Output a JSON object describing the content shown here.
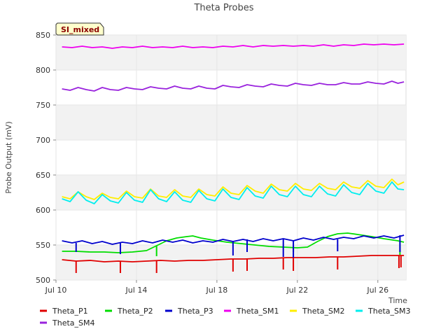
{
  "chart_data": {
    "type": "line",
    "title": "Theta Probes",
    "xlabel": "Time",
    "ylabel": "Probe Output (mV)",
    "badge": "SI_mixed",
    "ylim": [
      500,
      850
    ],
    "yticks": [
      500,
      550,
      600,
      650,
      700,
      750,
      800,
      850
    ],
    "xlim": [
      10,
      27.4
    ],
    "xticks": [
      {
        "value": 10,
        "label": "Jul 10"
      },
      {
        "value": 14,
        "label": "Jul 14"
      },
      {
        "value": 18,
        "label": "Jul 18"
      },
      {
        "value": 22,
        "label": "Jul 22"
      },
      {
        "value": 26,
        "label": "Jul 26"
      }
    ],
    "series": [
      {
        "name": "Theta_P1",
        "color": "#e00000",
        "values": [
          [
            10.3,
            529
          ],
          [
            11,
            527
          ],
          [
            11.7,
            528
          ],
          [
            12.4,
            526
          ],
          [
            13.1,
            527
          ],
          [
            13.8,
            526
          ],
          [
            14.5,
            527
          ],
          [
            15.2,
            528
          ],
          [
            15.9,
            527
          ],
          [
            16.6,
            528
          ],
          [
            17.3,
            528
          ],
          [
            18,
            529
          ],
          [
            18.7,
            530
          ],
          [
            19.4,
            530
          ],
          [
            20.1,
            531
          ],
          [
            20.8,
            531
          ],
          [
            21.5,
            532
          ],
          [
            22.2,
            532
          ],
          [
            22.9,
            532
          ],
          [
            23.6,
            533
          ],
          [
            24.3,
            533
          ],
          [
            25,
            534
          ],
          [
            25.7,
            535
          ],
          [
            26.4,
            535
          ],
          [
            27.1,
            535
          ],
          [
            27.3,
            535
          ]
        ],
        "spikes": [
          [
            11,
            510
          ],
          [
            13.2,
            510
          ],
          [
            15,
            510
          ],
          [
            18.8,
            512
          ],
          [
            19.5,
            513
          ],
          [
            21.3,
            515
          ],
          [
            21.8,
            513
          ],
          [
            24,
            515
          ],
          [
            27.05,
            517
          ],
          [
            27.15,
            518
          ]
        ]
      },
      {
        "name": "Theta_P2",
        "color": "#00dd00",
        "values": [
          [
            10.3,
            541
          ],
          [
            11,
            541
          ],
          [
            11.7,
            540
          ],
          [
            12.4,
            540
          ],
          [
            13.1,
            539
          ],
          [
            13.8,
            540
          ],
          [
            14.5,
            542
          ],
          [
            15,
            549
          ],
          [
            15.5,
            556
          ],
          [
            16,
            560
          ],
          [
            16.5,
            562
          ],
          [
            16.8,
            563
          ],
          [
            17.2,
            560
          ],
          [
            17.8,
            557
          ],
          [
            18.5,
            554
          ],
          [
            19.2,
            552
          ],
          [
            19.9,
            550
          ],
          [
            20.6,
            548
          ],
          [
            21.3,
            547
          ],
          [
            22,
            546
          ],
          [
            22.5,
            547
          ],
          [
            23,
            555
          ],
          [
            23.5,
            562
          ],
          [
            24,
            566
          ],
          [
            24.5,
            567
          ],
          [
            25,
            565
          ],
          [
            25.7,
            562
          ],
          [
            26.3,
            559
          ],
          [
            27,
            556
          ],
          [
            27.3,
            554
          ]
        ],
        "spikes": [
          [
            15,
            534
          ],
          [
            21.8,
            540
          ],
          [
            27.1,
            536
          ]
        ]
      },
      {
        "name": "Theta_P3",
        "color": "#0000cc",
        "values": [
          [
            10.3,
            556
          ],
          [
            10.8,
            553
          ],
          [
            11.3,
            556
          ],
          [
            11.8,
            552
          ],
          [
            12.3,
            555
          ],
          [
            12.8,
            551
          ],
          [
            13.3,
            554
          ],
          [
            13.8,
            552
          ],
          [
            14.3,
            556
          ],
          [
            14.8,
            553
          ],
          [
            15.3,
            557
          ],
          [
            15.8,
            554
          ],
          [
            16.3,
            557
          ],
          [
            16.8,
            553
          ],
          [
            17.3,
            556
          ],
          [
            17.8,
            554
          ],
          [
            18.3,
            558
          ],
          [
            18.8,
            555
          ],
          [
            19.3,
            558
          ],
          [
            19.8,
            555
          ],
          [
            20.3,
            559
          ],
          [
            20.8,
            556
          ],
          [
            21.3,
            559
          ],
          [
            21.8,
            556
          ],
          [
            22.3,
            560
          ],
          [
            22.8,
            557
          ],
          [
            23.3,
            561
          ],
          [
            23.8,
            558
          ],
          [
            24.3,
            561
          ],
          [
            24.8,
            559
          ],
          [
            25.3,
            563
          ],
          [
            25.8,
            560
          ],
          [
            26.3,
            563
          ],
          [
            26.8,
            560
          ],
          [
            27.3,
            564
          ]
        ],
        "spikes": [
          [
            11,
            540
          ],
          [
            13.2,
            537
          ],
          [
            18.8,
            535
          ],
          [
            19.5,
            540
          ],
          [
            21.3,
            533
          ],
          [
            21.8,
            532
          ],
          [
            24,
            541
          ],
          [
            27.1,
            540
          ]
        ]
      },
      {
        "name": "Theta_SM1",
        "color": "#ee00ee",
        "values": [
          [
            10.3,
            833
          ],
          [
            10.8,
            832
          ],
          [
            11.3,
            834
          ],
          [
            11.8,
            832
          ],
          [
            12.3,
            833
          ],
          [
            12.8,
            831
          ],
          [
            13.3,
            833
          ],
          [
            13.8,
            832
          ],
          [
            14.3,
            834
          ],
          [
            14.8,
            832
          ],
          [
            15.3,
            833
          ],
          [
            15.8,
            832
          ],
          [
            16.3,
            834
          ],
          [
            16.8,
            832
          ],
          [
            17.3,
            833
          ],
          [
            17.8,
            832
          ],
          [
            18.3,
            834
          ],
          [
            18.8,
            833
          ],
          [
            19.3,
            835
          ],
          [
            19.8,
            833
          ],
          [
            20.3,
            835
          ],
          [
            20.8,
            834
          ],
          [
            21.3,
            835
          ],
          [
            21.8,
            834
          ],
          [
            22.3,
            835
          ],
          [
            22.8,
            834
          ],
          [
            23.3,
            836
          ],
          [
            23.8,
            834
          ],
          [
            24.3,
            836
          ],
          [
            24.8,
            835
          ],
          [
            25.3,
            837
          ],
          [
            25.8,
            836
          ],
          [
            26.3,
            837
          ],
          [
            26.8,
            836
          ],
          [
            27.3,
            837
          ]
        ]
      },
      {
        "name": "Theta_SM2",
        "color": "#ffee00",
        "values": [
          [
            10.3,
            619
          ],
          [
            10.7,
            616
          ],
          [
            11.1,
            626
          ],
          [
            11.5,
            619
          ],
          [
            11.9,
            615
          ],
          [
            12.3,
            624
          ],
          [
            12.7,
            618
          ],
          [
            13.1,
            616
          ],
          [
            13.5,
            627
          ],
          [
            13.9,
            619
          ],
          [
            14.3,
            617
          ],
          [
            14.7,
            630
          ],
          [
            15.1,
            620
          ],
          [
            15.5,
            618
          ],
          [
            15.9,
            629
          ],
          [
            16.3,
            620
          ],
          [
            16.7,
            618
          ],
          [
            17.1,
            630
          ],
          [
            17.5,
            622
          ],
          [
            17.9,
            620
          ],
          [
            18.3,
            633
          ],
          [
            18.7,
            624
          ],
          [
            19.1,
            622
          ],
          [
            19.5,
            635
          ],
          [
            19.9,
            627
          ],
          [
            20.3,
            624
          ],
          [
            20.7,
            637
          ],
          [
            21.1,
            629
          ],
          [
            21.5,
            627
          ],
          [
            21.9,
            638
          ],
          [
            22.3,
            630
          ],
          [
            22.7,
            628
          ],
          [
            23.1,
            638
          ],
          [
            23.5,
            631
          ],
          [
            23.9,
            629
          ],
          [
            24.3,
            640
          ],
          [
            24.7,
            633
          ],
          [
            25.1,
            631
          ],
          [
            25.5,
            642
          ],
          [
            25.9,
            634
          ],
          [
            26.3,
            632
          ],
          [
            26.7,
            644
          ],
          [
            27,
            636
          ],
          [
            27.3,
            640
          ]
        ]
      },
      {
        "name": "Theta_SM3",
        "color": "#00eeee",
        "values": [
          [
            10.3,
            616
          ],
          [
            10.7,
            612
          ],
          [
            11.1,
            626
          ],
          [
            11.5,
            614
          ],
          [
            11.9,
            609
          ],
          [
            12.3,
            622
          ],
          [
            12.7,
            613
          ],
          [
            13.1,
            610
          ],
          [
            13.5,
            625
          ],
          [
            13.9,
            614
          ],
          [
            14.3,
            611
          ],
          [
            14.7,
            629
          ],
          [
            15.1,
            616
          ],
          [
            15.5,
            612
          ],
          [
            15.9,
            626
          ],
          [
            16.3,
            614
          ],
          [
            16.7,
            611
          ],
          [
            17.1,
            628
          ],
          [
            17.5,
            616
          ],
          [
            17.9,
            613
          ],
          [
            18.3,
            630
          ],
          [
            18.7,
            618
          ],
          [
            19.1,
            615
          ],
          [
            19.5,
            632
          ],
          [
            19.9,
            620
          ],
          [
            20.3,
            617
          ],
          [
            20.7,
            634
          ],
          [
            21.1,
            622
          ],
          [
            21.5,
            619
          ],
          [
            21.9,
            634
          ],
          [
            22.3,
            622
          ],
          [
            22.7,
            619
          ],
          [
            23.1,
            634
          ],
          [
            23.5,
            623
          ],
          [
            23.9,
            620
          ],
          [
            24.3,
            636
          ],
          [
            24.7,
            625
          ],
          [
            25.1,
            622
          ],
          [
            25.5,
            638
          ],
          [
            25.9,
            627
          ],
          [
            26.3,
            624
          ],
          [
            26.7,
            640
          ],
          [
            27,
            630
          ],
          [
            27.3,
            629
          ]
        ]
      },
      {
        "name": "Theta_SM4",
        "color": "#9922dd",
        "values": [
          [
            10.3,
            773
          ],
          [
            10.7,
            771
          ],
          [
            11.1,
            775
          ],
          [
            11.5,
            772
          ],
          [
            11.9,
            770
          ],
          [
            12.3,
            775
          ],
          [
            12.7,
            772
          ],
          [
            13.1,
            771
          ],
          [
            13.5,
            775
          ],
          [
            13.9,
            773
          ],
          [
            14.3,
            772
          ],
          [
            14.7,
            776
          ],
          [
            15.1,
            774
          ],
          [
            15.5,
            773
          ],
          [
            15.9,
            777
          ],
          [
            16.3,
            774
          ],
          [
            16.7,
            773
          ],
          [
            17.1,
            777
          ],
          [
            17.5,
            774
          ],
          [
            17.9,
            773
          ],
          [
            18.3,
            778
          ],
          [
            18.7,
            776
          ],
          [
            19.1,
            775
          ],
          [
            19.5,
            779
          ],
          [
            19.9,
            777
          ],
          [
            20.3,
            776
          ],
          [
            20.7,
            780
          ],
          [
            21.1,
            778
          ],
          [
            21.5,
            777
          ],
          [
            21.9,
            781
          ],
          [
            22.3,
            779
          ],
          [
            22.7,
            778
          ],
          [
            23.1,
            781
          ],
          [
            23.5,
            779
          ],
          [
            23.9,
            779
          ],
          [
            24.3,
            782
          ],
          [
            24.7,
            780
          ],
          [
            25.1,
            780
          ],
          [
            25.5,
            783
          ],
          [
            25.9,
            781
          ],
          [
            26.3,
            780
          ],
          [
            26.7,
            784
          ],
          [
            27,
            781
          ],
          [
            27.3,
            783
          ]
        ]
      }
    ]
  }
}
